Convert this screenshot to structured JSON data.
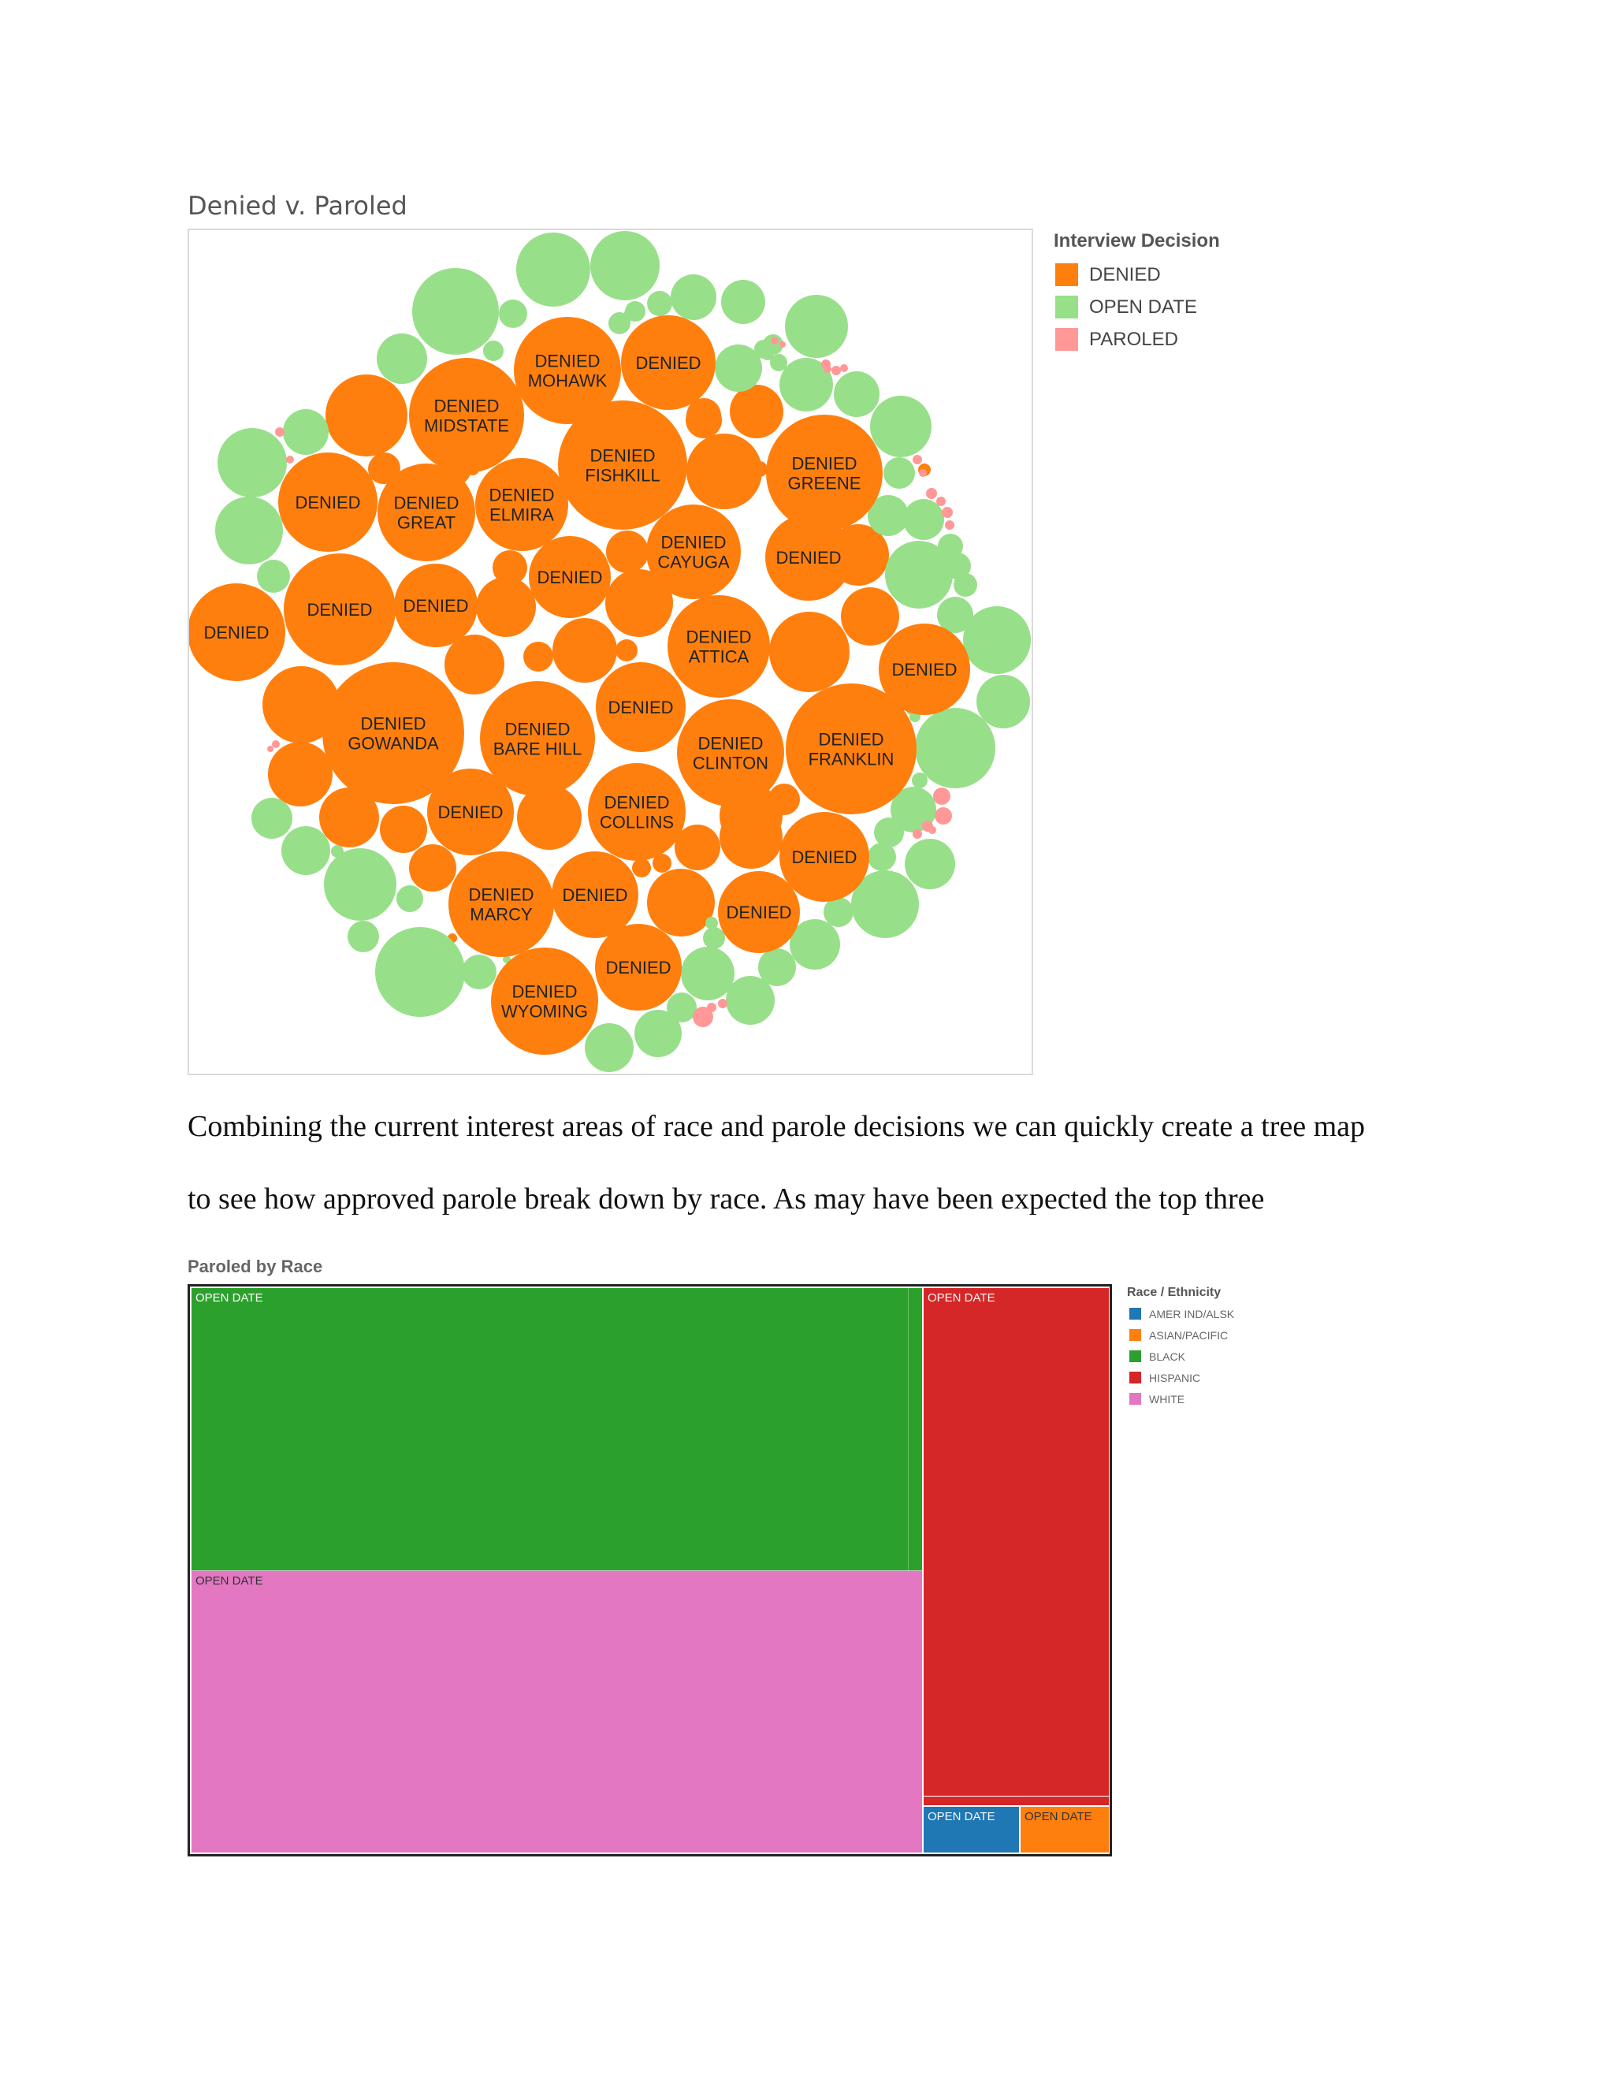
{
  "bubble_chart": {
    "title": "Denied v. Paroled",
    "legend": {
      "title": "Interview Decision",
      "items": [
        {
          "label": "DENIED",
          "color": "#ff7f0e"
        },
        {
          "label": "OPEN DATE",
          "color": "#98df8a"
        },
        {
          "label": "PAROLED",
          "color": "#ff9896"
        }
      ]
    }
  },
  "paragraph": {
    "line1": "Combining the current interest areas of race and parole decisions we can quickly create a tree map",
    "line2": "to see how approved parole break down by race. As may have been expected the top three"
  },
  "treemap": {
    "title": "Paroled by Race",
    "legend": {
      "title": "Race / Ethnicity",
      "items": [
        {
          "label": "AMER IND/ALSK",
          "color": "#1f77b4"
        },
        {
          "label": "ASIAN/PACIFIC",
          "color": "#ff7f0e"
        },
        {
          "label": "BLACK",
          "color": "#2ca02c"
        },
        {
          "label": "HISPANIC",
          "color": "#d62728"
        },
        {
          "label": "WHITE",
          "color": "#e377c2"
        }
      ]
    }
  },
  "chart_data": [
    {
      "type": "bubble",
      "title": "Denied v. Paroled",
      "legend_title": "Interview Decision",
      "categories": [
        "DENIED",
        "OPEN DATE",
        "PAROLED"
      ],
      "legend_placement": "right",
      "bubbles": [
        {
          "category": "DENIED",
          "label": "DENIED\nMOHAWK",
          "r": 68
        },
        {
          "category": "DENIED",
          "label": "DENIED",
          "r": 60
        },
        {
          "category": "DENIED",
          "label": "DENIED\nMIDSTATE",
          "r": 73
        },
        {
          "category": "DENIED",
          "label": "DENIED\nFISHKILL",
          "r": 82
        },
        {
          "category": "DENIED",
          "label": "DENIED\nGREENE",
          "r": 74
        },
        {
          "category": "DENIED",
          "label": "DENIED",
          "r": 63
        },
        {
          "category": "DENIED",
          "label": "DENIED\nGREAT",
          "r": 62
        },
        {
          "category": "DENIED",
          "label": "DENIED\nELMIRA",
          "r": 59
        },
        {
          "category": "DENIED",
          "label": "DENIED",
          "r": 55
        },
        {
          "category": "DENIED",
          "label": "DENIED\nCAYUGA",
          "r": 60
        },
        {
          "category": "DENIED",
          "label": "DENIED",
          "r": 52
        },
        {
          "category": "DENIED",
          "label": "DENIED",
          "r": 71
        },
        {
          "category": "DENIED",
          "label": "DENIED",
          "r": 53
        },
        {
          "category": "DENIED",
          "label": "DENIED",
          "r": 62
        },
        {
          "category": "DENIED",
          "label": "DENIED\nATTICA",
          "r": 65
        },
        {
          "category": "DENIED",
          "label": "DENIED",
          "r": 58
        },
        {
          "category": "DENIED",
          "label": "DENIED\nGOWANDA",
          "r": 90
        },
        {
          "category": "DENIED",
          "label": "DENIED\nBARE HILL",
          "r": 73
        },
        {
          "category": "DENIED",
          "label": "DENIED",
          "r": 57
        },
        {
          "category": "DENIED",
          "label": "DENIED\nCLINTON",
          "r": 68
        },
        {
          "category": "DENIED",
          "label": "DENIED\nFRANKLIN",
          "r": 83
        },
        {
          "category": "DENIED",
          "label": "DENIED",
          "r": 57
        },
        {
          "category": "DENIED",
          "label": "DENIED\nCOLLINS",
          "r": 62
        },
        {
          "category": "DENIED",
          "label": "DENIED",
          "r": 55
        },
        {
          "category": "DENIED",
          "label": "DENIED\nMARCY",
          "r": 67
        },
        {
          "category": "DENIED",
          "label": "DENIED",
          "r": 55
        },
        {
          "category": "DENIED",
          "label": "DENIED",
          "r": 52
        },
        {
          "category": "DENIED",
          "label": "DENIED",
          "r": 55
        },
        {
          "category": "DENIED",
          "label": "DENIED\nWYOMING",
          "r": 68
        }
      ]
    },
    {
      "type": "treemap",
      "title": "Paroled by Race",
      "legend_title": "Race / Ethnicity",
      "legend_placement": "right",
      "tiles": [
        {
          "race": "BLACK",
          "label": "OPEN DATE"
        },
        {
          "race": "WHITE",
          "label": "OPEN DATE"
        },
        {
          "race": "HISPANIC",
          "label": "OPEN DATE"
        },
        {
          "race": "AMER IND/ALSK",
          "label": "OPEN DATE"
        },
        {
          "race": "ASIAN/PACIFIC",
          "label": "OPEN DATE"
        }
      ]
    }
  ]
}
